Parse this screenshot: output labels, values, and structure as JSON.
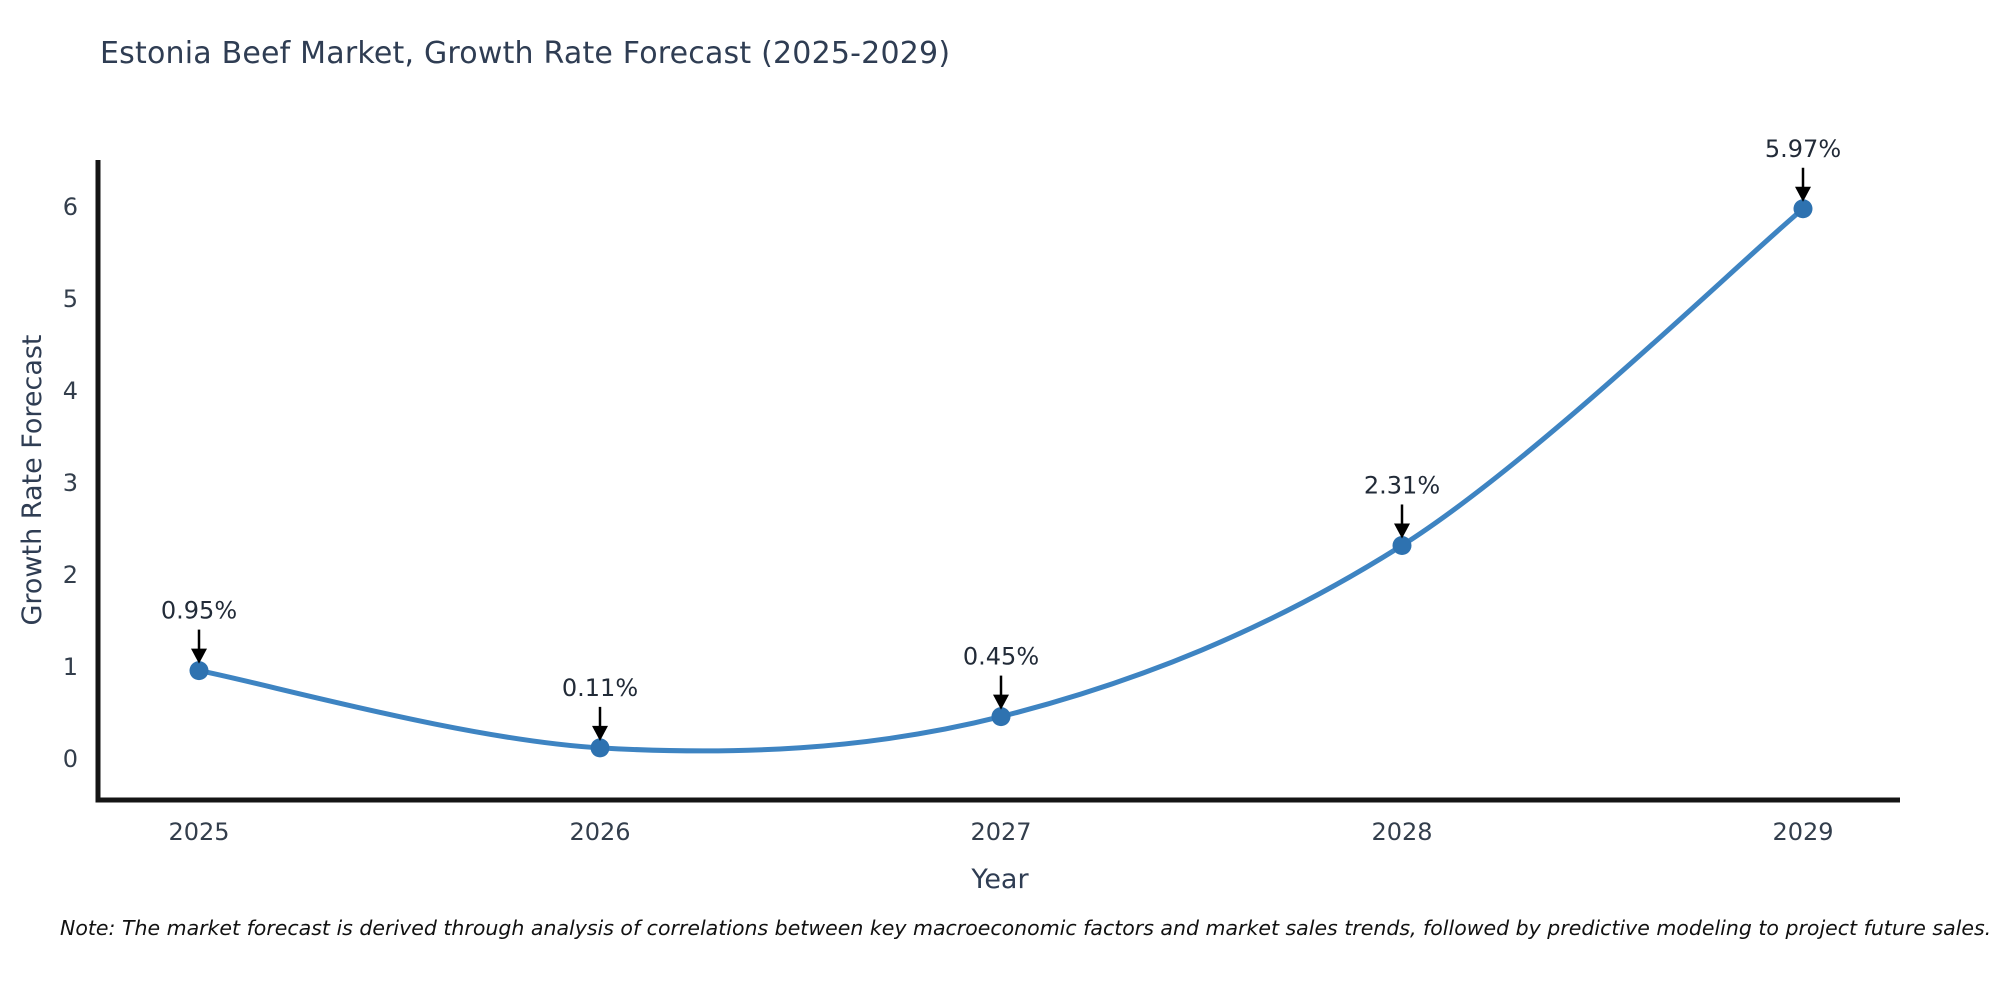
{
  "title": "Estonia Beef Market, Growth Rate Forecast (2025-2029)",
  "note": "Note: The market forecast is derived through analysis of correlations between key macroeconomic factors and market sales trends, followed by predictive modeling to project future sales.",
  "chart_data": {
    "type": "line",
    "title": "Estonia Beef Market, Growth Rate Forecast (2025-2029)",
    "xlabel": "Year",
    "ylabel": "Growth Rate Forecast",
    "categories": [
      "2025",
      "2026",
      "2027",
      "2028",
      "2029"
    ],
    "values": [
      0.95,
      0.11,
      0.45,
      2.31,
      5.97
    ],
    "data_labels": [
      "0.95%",
      "0.11%",
      "0.45%",
      "2.31%",
      "5.97%"
    ],
    "yticks": [
      0,
      1,
      2,
      3,
      4,
      5,
      6
    ],
    "ylim": [
      0,
      6.5
    ],
    "grid": false,
    "legend_position": "none",
    "line_shape": "spline",
    "annotation_arrows": "down",
    "colors": {
      "line": "#3e84c2",
      "marker": "#2e72b0",
      "axis": "#151515",
      "axis_title_text": "#2f3d53",
      "tick_text": "#333e4c",
      "annotation_text": "#222b38",
      "arrow": "#000000",
      "background": "#ffffff"
    }
  }
}
